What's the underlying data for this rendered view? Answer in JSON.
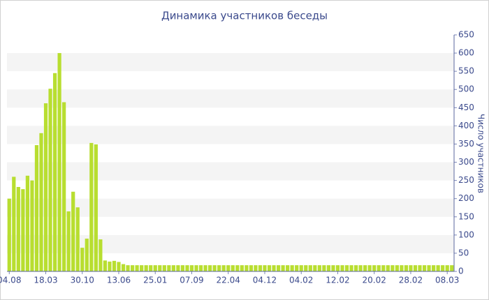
{
  "chart_data": {
    "type": "bar",
    "title": "Динамика участников беседы",
    "y_axis_label": "Число участников",
    "color": "#b8de30",
    "grid": "bands",
    "categories": [
      "04.08",
      null,
      null,
      null,
      null,
      null,
      null,
      null,
      "18.03",
      null,
      null,
      null,
      null,
      null,
      null,
      null,
      "30.10",
      null,
      null,
      null,
      null,
      null,
      null,
      null,
      "13.06",
      null,
      null,
      null,
      null,
      null,
      null,
      null,
      "25.01",
      null,
      null,
      null,
      null,
      null,
      null,
      null,
      "07.09",
      null,
      null,
      null,
      null,
      null,
      null,
      null,
      "22.04",
      null,
      null,
      null,
      null,
      null,
      null,
      null,
      "04.12",
      null,
      null,
      null,
      null,
      null,
      null,
      null,
      "04.02",
      null,
      null,
      null,
      null,
      null,
      null,
      null,
      "12.02",
      null,
      null,
      null,
      null,
      null,
      null,
      null,
      "20.02",
      null,
      null,
      null,
      null,
      null,
      null,
      null,
      "28.02",
      null,
      null,
      null,
      null,
      null,
      null,
      null,
      "08.03",
      null
    ],
    "values": [
      200,
      260,
      232,
      226,
      263,
      250,
      347,
      380,
      462,
      502,
      545,
      600,
      465,
      165,
      219,
      176,
      65,
      90,
      353,
      349,
      88,
      30,
      27,
      29,
      26,
      20,
      17,
      17,
      17,
      17,
      17,
      17,
      17,
      17,
      17,
      17,
      17,
      17,
      17,
      17,
      17,
      17,
      17,
      17,
      17,
      17,
      17,
      17,
      17,
      17,
      17,
      17,
      17,
      17,
      17,
      17,
      17,
      17,
      17,
      17,
      17,
      17,
      17,
      17,
      17,
      17,
      17,
      17,
      17,
      17,
      17,
      17,
      17,
      17,
      17,
      17,
      17,
      17,
      17,
      17,
      17,
      17,
      17,
      17,
      17,
      17,
      17,
      17,
      17,
      17,
      17,
      17,
      17,
      17,
      17,
      17,
      17,
      17
    ],
    "ylim": [
      0,
      650
    ],
    "yticks": [
      0,
      50,
      100,
      150,
      200,
      250,
      300,
      350,
      400,
      450,
      500,
      550,
      600,
      650
    ]
  }
}
